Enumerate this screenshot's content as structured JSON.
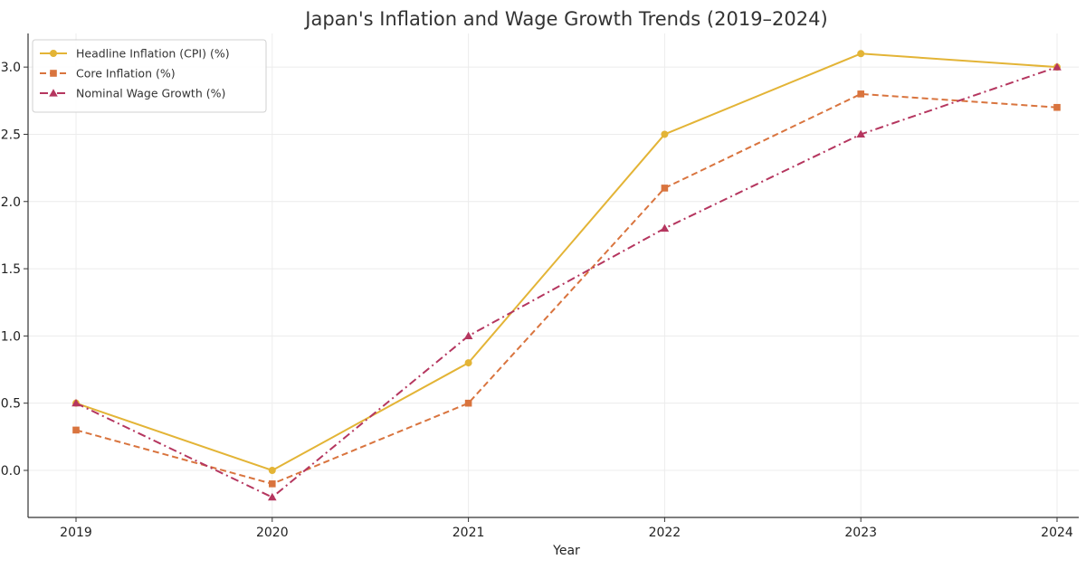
{
  "chart_data": {
    "type": "line",
    "title": "Japan's Inflation and Wage Growth Trends (2019–2024)",
    "xlabel": "Year",
    "ylabel": "",
    "categories": [
      "2019",
      "2020",
      "2021",
      "2022",
      "2023",
      "2024"
    ],
    "y_ticks": [
      "0.0",
      "0.5",
      "1.0",
      "1.5",
      "2.0",
      "2.5",
      "3.0"
    ],
    "ylim": [
      -0.35,
      3.25
    ],
    "grid": true,
    "legend_position": "top-left",
    "series": [
      {
        "name": "Headline Inflation (CPI) (%)",
        "values": [
          0.5,
          0.0,
          0.8,
          2.5,
          3.1,
          3.0
        ],
        "color": "#e3b436",
        "line_style": "solid",
        "marker": "circle"
      },
      {
        "name": "Core Inflation (%)",
        "values": [
          0.3,
          -0.1,
          0.5,
          2.1,
          2.8,
          2.7
        ],
        "color": "#d9743e",
        "line_style": "dashed",
        "marker": "square"
      },
      {
        "name": "Nominal Wage Growth (%)",
        "values": [
          0.5,
          -0.2,
          1.0,
          1.8,
          2.5,
          3.0
        ],
        "color": "#b5365f",
        "line_style": "dash-dot",
        "marker": "triangle"
      }
    ]
  }
}
